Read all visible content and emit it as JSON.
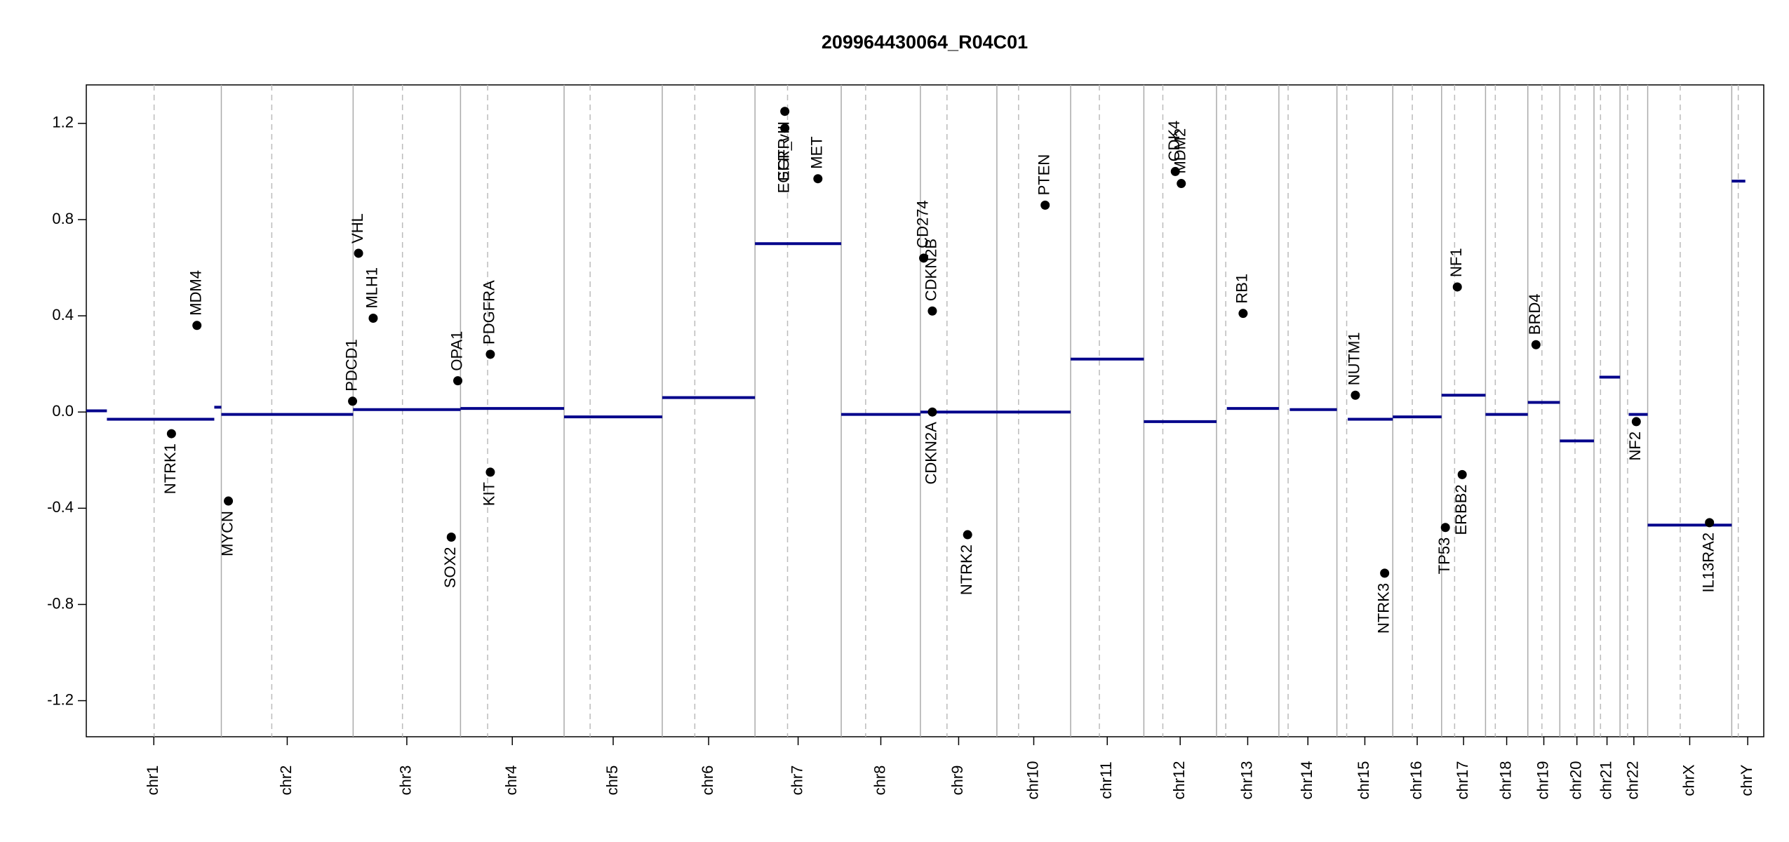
{
  "chart_data": {
    "type": "genome",
    "title": "209964430064_R04C01",
    "ylim": [
      -1.35,
      1.36
    ],
    "yticks": [
      -1.2,
      -0.8,
      -0.4,
      {
        "value": 0,
        "label": "0.0"
      },
      0.4,
      0.8,
      1.2
    ],
    "segment_color": "#00008b",
    "gene_color": "#000000",
    "chromosomes": [
      {
        "name": "chr1",
        "length": 249,
        "centromere": 125
      },
      {
        "name": "chr2",
        "length": 243,
        "centromere": 93
      },
      {
        "name": "chr3",
        "length": 198,
        "centromere": 91
      },
      {
        "name": "chr4",
        "length": 191,
        "centromere": 50
      },
      {
        "name": "chr5",
        "length": 181,
        "centromere": 48
      },
      {
        "name": "chr6",
        "length": 171,
        "centromere": 60
      },
      {
        "name": "chr7",
        "length": 159,
        "centromere": 60
      },
      {
        "name": "chr8",
        "length": 146,
        "centromere": 45
      },
      {
        "name": "chr9",
        "length": 141,
        "centromere": 49
      },
      {
        "name": "chr10",
        "length": 136,
        "centromere": 40
      },
      {
        "name": "chr11",
        "length": 135,
        "centromere": 53
      },
      {
        "name": "chr12",
        "length": 134,
        "centromere": 35
      },
      {
        "name": "chr13",
        "length": 115,
        "centromere": 17
      },
      {
        "name": "chr14",
        "length": 107,
        "centromere": 17
      },
      {
        "name": "chr15",
        "length": 103,
        "centromere": 18
      },
      {
        "name": "chr16",
        "length": 90,
        "centromere": 36
      },
      {
        "name": "chr17",
        "length": 81,
        "centromere": 24
      },
      {
        "name": "chr18",
        "length": 78,
        "centromere": 18
      },
      {
        "name": "chr19",
        "length": 59,
        "centromere": 26
      },
      {
        "name": "chr20",
        "length": 63,
        "centromere": 28
      },
      {
        "name": "chr21",
        "length": 48,
        "centromere": 12
      },
      {
        "name": "chr22",
        "length": 51,
        "centromere": 14
      },
      {
        "name": "chrX",
        "length": 155,
        "centromere": 60
      },
      {
        "name": "chrY",
        "length": 59,
        "centromere": 12
      }
    ],
    "segments": [
      {
        "chrom": "chr1",
        "start": 0,
        "end": 38,
        "value": 0.005
      },
      {
        "chrom": "chr1",
        "start": 38,
        "end": 236,
        "value": -0.03
      },
      {
        "chrom": "chr1",
        "start": 236,
        "end": 249,
        "value": 0.02
      },
      {
        "chrom": "chr2",
        "start": 0,
        "end": 243,
        "value": -0.01
      },
      {
        "chrom": "chr3",
        "start": 0,
        "end": 198,
        "value": 0.01
      },
      {
        "chrom": "chr4",
        "start": 0,
        "end": 191,
        "value": 0.015
      },
      {
        "chrom": "chr5",
        "start": 0,
        "end": 181,
        "value": -0.02
      },
      {
        "chrom": "chr6",
        "start": 0,
        "end": 171,
        "value": 0.06
      },
      {
        "chrom": "chr7",
        "start": 0,
        "end": 159,
        "value": 0.7
      },
      {
        "chrom": "chr8",
        "start": 0,
        "end": 146,
        "value": -0.01
      },
      {
        "chrom": "chr9",
        "start": 0,
        "end": 141,
        "value": 0
      },
      {
        "chrom": "chr10",
        "start": 0,
        "end": 136,
        "value": 0
      },
      {
        "chrom": "chr11",
        "start": 0,
        "end": 135,
        "value": 0.22
      },
      {
        "chrom": "chr12",
        "start": 0,
        "end": 134,
        "value": -0.04
      },
      {
        "chrom": "chr13",
        "start": 19,
        "end": 115,
        "value": 0.015
      },
      {
        "chrom": "chr14",
        "start": 20,
        "end": 107,
        "value": 0.01
      },
      {
        "chrom": "chr15",
        "start": 20,
        "end": 103,
        "value": -0.03
      },
      {
        "chrom": "chr16",
        "start": 0,
        "end": 90,
        "value": -0.02
      },
      {
        "chrom": "chr17",
        "start": 0,
        "end": 81,
        "value": 0.07
      },
      {
        "chrom": "chr18",
        "start": 0,
        "end": 78,
        "value": -0.01
      },
      {
        "chrom": "chr19",
        "start": 0,
        "end": 59,
        "value": 0.04
      },
      {
        "chrom": "chr20",
        "start": 0,
        "end": 63,
        "value": -0.12
      },
      {
        "chrom": "chr21",
        "start": 10,
        "end": 48,
        "value": 0.145
      },
      {
        "chrom": "chr22",
        "start": 16,
        "end": 51,
        "value": -0.01
      },
      {
        "chrom": "chrX",
        "start": 0,
        "end": 155,
        "value": -0.47
      },
      {
        "chrom": "chrY",
        "start": 0,
        "end": 25,
        "value": 0.96
      }
    ],
    "genes": [
      {
        "name": "NTRK1",
        "chrom": "chr1",
        "pos": 157,
        "value": -0.09
      },
      {
        "name": "MDM4",
        "chrom": "chr1",
        "pos": 204,
        "value": 0.36
      },
      {
        "name": "MYCN",
        "chrom": "chr2",
        "pos": 13,
        "value": -0.37
      },
      {
        "name": "PDCD1",
        "chrom": "chr2",
        "pos": 242,
        "value": 0.045
      },
      {
        "name": "VHL",
        "chrom": "chr3",
        "pos": 10,
        "value": 0.66
      },
      {
        "name": "MLH1",
        "chrom": "chr3",
        "pos": 37,
        "value": 0.39
      },
      {
        "name": "SOX2",
        "chrom": "chr3",
        "pos": 181,
        "value": -0.52
      },
      {
        "name": "OPA1",
        "chrom": "chr3",
        "pos": 193,
        "value": 0.13
      },
      {
        "name": "PDGFRA",
        "chrom": "chr4",
        "pos": 55,
        "value": 0.24
      },
      {
        "name": "KIT",
        "chrom": "chr4",
        "pos": 55,
        "value": -0.25
      },
      {
        "name": "EGFR_vIII",
        "chrom": "chr7",
        "pos": 55,
        "value": 1.25
      },
      {
        "name": "EGFR",
        "chrom": "chr7",
        "pos": 55,
        "value": 1.18
      },
      {
        "name": "MET",
        "chrom": "chr7",
        "pos": 116,
        "value": 0.97
      },
      {
        "name": "CD274",
        "chrom": "chr9",
        "pos": 6,
        "value": 0.64
      },
      {
        "name": "CDKN2B",
        "chrom": "chr9",
        "pos": 22,
        "value": 0.42
      },
      {
        "name": "CDKN2A",
        "chrom": "chr9",
        "pos": 22,
        "value": 0.0
      },
      {
        "name": "NTRK2",
        "chrom": "chr9",
        "pos": 87,
        "value": -0.51
      },
      {
        "name": "PTEN",
        "chrom": "chr10",
        "pos": 89,
        "value": 0.86
      },
      {
        "name": "CDK4",
        "chrom": "chr12",
        "pos": 58,
        "value": 1.0
      },
      {
        "name": "MDM2",
        "chrom": "chr12",
        "pos": 69,
        "value": 0.95
      },
      {
        "name": "RB1",
        "chrom": "chr13",
        "pos": 49,
        "value": 0.41
      },
      {
        "name": "NUTM1",
        "chrom": "chr15",
        "pos": 34,
        "value": 0.07
      },
      {
        "name": "NTRK3",
        "chrom": "chr15",
        "pos": 88,
        "value": -0.67
      },
      {
        "name": "TP53",
        "chrom": "chr17",
        "pos": 7,
        "value": -0.48
      },
      {
        "name": "NF1",
        "chrom": "chr17",
        "pos": 29,
        "value": 0.52
      },
      {
        "name": "ERBB2",
        "chrom": "chr17",
        "pos": 38,
        "value": -0.26
      },
      {
        "name": "BRD4",
        "chrom": "chr19",
        "pos": 15,
        "value": 0.28
      },
      {
        "name": "NF2",
        "chrom": "chr22",
        "pos": 30,
        "value": -0.04
      },
      {
        "name": "IL13RA2",
        "chrom": "chrX",
        "pos": 114,
        "value": -0.46
      }
    ]
  }
}
